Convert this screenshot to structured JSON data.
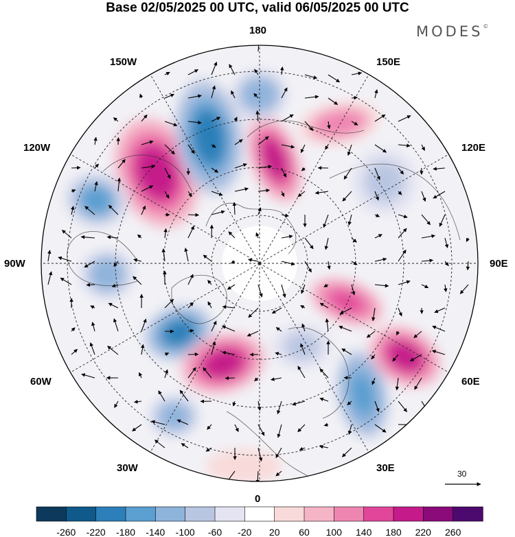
{
  "title": "Base 02/05/2025 00 UTC, valid 06/05/2025 00 UTC",
  "brand": {
    "name": "MODES",
    "mark": "©"
  },
  "longitude_labels": {
    "top": "180",
    "bottom": "0",
    "left": "90W",
    "right": "90E",
    "upper_left_1": "150W",
    "upper_left_2": "120W",
    "lower_left_1": "60W",
    "lower_left_2": "30W",
    "upper_right_1": "150E",
    "upper_right_2": "120E",
    "lower_right_1": "60E",
    "lower_right_2": "30E"
  },
  "reference_vector": {
    "label": "30"
  },
  "colorbar": {
    "ticks": [
      "-260",
      "-220",
      "-180",
      "-140",
      "-100",
      "-60",
      "-20",
      "20",
      "60",
      "100",
      "140",
      "180",
      "220",
      "260"
    ],
    "colors": [
      "#0d3a5c",
      "#0f5a8a",
      "#2c7fb8",
      "#5a9fd0",
      "#8fb4dc",
      "#b9c6e2",
      "#e4e4f2",
      "#ffffff",
      "#f9dada",
      "#f5b5c6",
      "#ef86b2",
      "#e2469a",
      "#c51b8a",
      "#8a0a7a",
      "#4d0a6e"
    ]
  },
  "map": {
    "projection": "north-polar-stereographic",
    "anomalies": [
      {
        "label": "pos-alaska",
        "value": 200
      },
      {
        "label": "neg-bering",
        "value": -220
      },
      {
        "label": "pos-chukotka",
        "value": 220
      },
      {
        "label": "neg-pacific-north",
        "value": -140
      },
      {
        "label": "pos-kamchatka",
        "value": 140
      },
      {
        "label": "neg-ne-pacific",
        "value": -160
      },
      {
        "label": "neg-hudson",
        "value": -140
      },
      {
        "label": "neg-baffin",
        "value": -220
      },
      {
        "label": "pos-greenland",
        "value": 220
      },
      {
        "label": "neg-atlantic",
        "value": -140
      },
      {
        "label": "neg-scandinavia",
        "value": -100
      },
      {
        "label": "neg-east-europe",
        "value": -180
      },
      {
        "label": "pos-siberia",
        "value": 180
      },
      {
        "label": "pos-central-asia",
        "value": 200
      },
      {
        "label": "neg-east-siberia",
        "value": -100
      },
      {
        "label": "pos-nw-africa",
        "value": 60
      }
    ]
  }
}
